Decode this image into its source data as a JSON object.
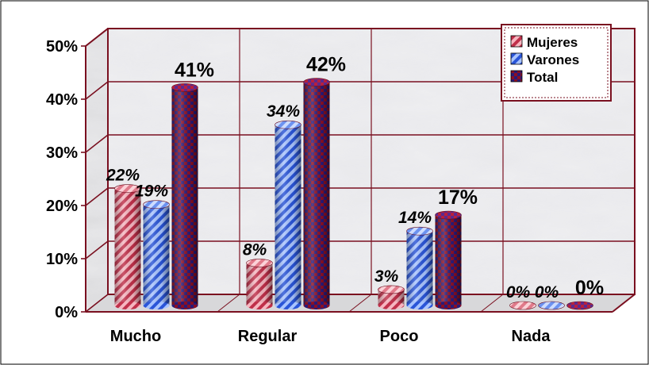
{
  "chart_data": {
    "type": "bar",
    "categories": [
      "Mucho",
      "Regular",
      "Poco",
      "Nada"
    ],
    "series": [
      {
        "name": "Mujeres",
        "values": [
          22,
          8,
          3,
          0
        ],
        "labels": [
          "22%",
          "8%",
          "3%",
          "0%"
        ]
      },
      {
        "name": "Varones",
        "values": [
          19,
          34,
          14,
          0
        ],
        "labels": [
          "19%",
          "34%",
          "14%",
          "0%"
        ]
      },
      {
        "name": "Total",
        "values": [
          41,
          42,
          17,
          0
        ],
        "labels": [
          "41%",
          "42%",
          "17%",
          "0%"
        ]
      }
    ],
    "y_ticks": [
      "0%",
      "10%",
      "20%",
      "30%",
      "40%",
      "50%"
    ],
    "ylim": [
      0,
      50
    ],
    "grid": true,
    "legend_position": "top-right",
    "colors": {
      "Mujeres": "#f08a98",
      "Varones": "#5b86f2",
      "Total": "#8a1028",
      "frame": "#7a1020"
    }
  }
}
